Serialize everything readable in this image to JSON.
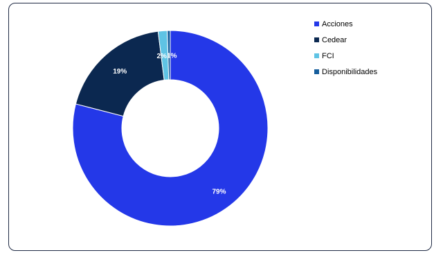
{
  "chart_data": {
    "type": "pie",
    "variant": "donut",
    "categories": [
      "Acciones",
      "Cedear",
      "FCI",
      "Disponibilidades"
    ],
    "values": [
      79,
      19,
      1.5,
      0.5
    ],
    "data_labels": [
      "79%",
      "19%",
      "2%",
      "1%"
    ],
    "colors": [
      "#2438e8",
      "#0b2850",
      "#5fc3e4",
      "#165e9c"
    ],
    "label_colors": [
      "#ffffff",
      "#ffffff",
      "#ffffff",
      "#ffffff"
    ],
    "legend_position": "top-right",
    "title": ""
  }
}
